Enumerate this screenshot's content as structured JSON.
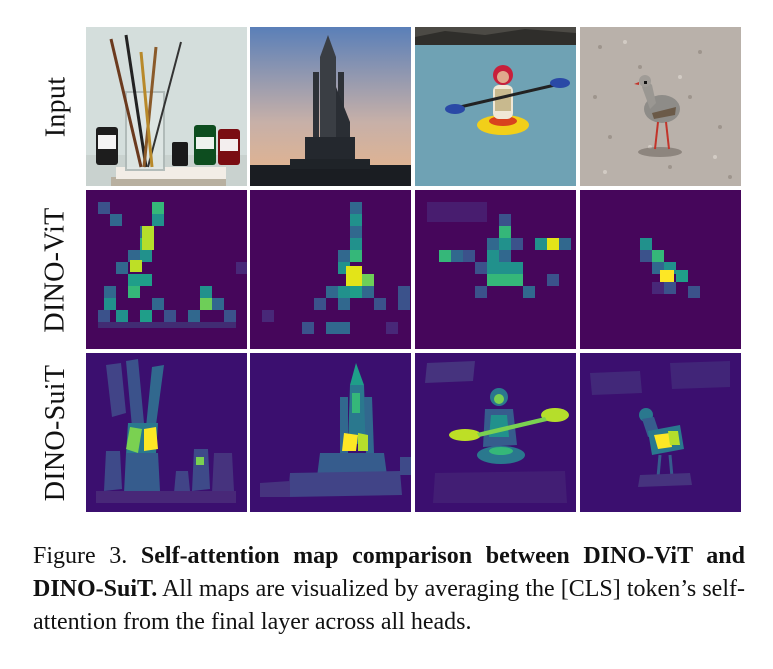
{
  "rows": [
    {
      "label": "Input"
    },
    {
      "label": "DINO-ViT"
    },
    {
      "label": "DINO-SuiT"
    }
  ],
  "columns": [
    {
      "subject": "paint-brushes-and-ink-bottles"
    },
    {
      "subject": "space-shuttle-on-launch-pad"
    },
    {
      "subject": "person-kayaking"
    },
    {
      "subject": "bird-on-gravel"
    }
  ],
  "colors": {
    "attention_low": "#440154",
    "attention_mid": "#21918c",
    "attention_high": "#fde725",
    "map_background": "#3b0f6f"
  },
  "caption": {
    "figure_number": "Figure 3.",
    "title": "Self-attention map comparison between DINO-ViT and DINO-SuiT.",
    "body": "All maps are visualized by averaging the [CLS] token’s self-attention from the final layer across all heads."
  }
}
